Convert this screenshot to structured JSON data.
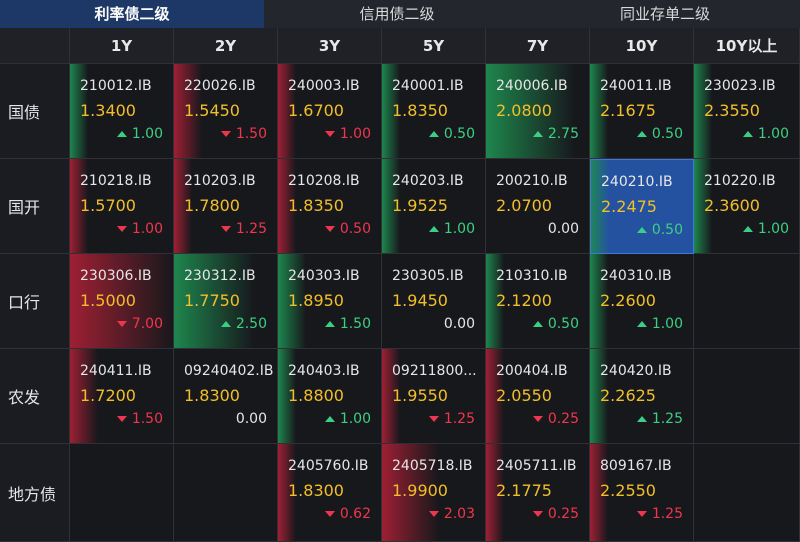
{
  "tabs": [
    "利率债二级",
    "信用债二级",
    "同业存单二级"
  ],
  "active_tab": 0,
  "columns": [
    "1Y",
    "2Y",
    "3Y",
    "5Y",
    "7Y",
    "10Y",
    "10Y以上"
  ],
  "selected": {
    "row": 1,
    "col": 5
  },
  "rows": [
    {
      "label": "国债",
      "cells": [
        {
          "code": "210012.IB",
          "yield": "1.3400",
          "change": "1.00",
          "dir": "up"
        },
        {
          "code": "220026.IB",
          "yield": "1.5450",
          "change": "1.50",
          "dir": "down"
        },
        {
          "code": "240003.IB",
          "yield": "1.6700",
          "change": "1.00",
          "dir": "down"
        },
        {
          "code": "240001.IB",
          "yield": "1.8350",
          "change": "0.50",
          "dir": "up"
        },
        {
          "code": "240006.IB",
          "yield": "2.0800",
          "change": "2.75",
          "dir": "up"
        },
        {
          "code": "240011.IB",
          "yield": "2.1675",
          "change": "0.50",
          "dir": "up"
        },
        {
          "code": "230023.IB",
          "yield": "2.3550",
          "change": "1.00",
          "dir": "up"
        }
      ]
    },
    {
      "label": "国开",
      "cells": [
        {
          "code": "210218.IB",
          "yield": "1.5700",
          "change": "1.00",
          "dir": "down"
        },
        {
          "code": "210203.IB",
          "yield": "1.7800",
          "change": "1.25",
          "dir": "down"
        },
        {
          "code": "210208.IB",
          "yield": "1.8350",
          "change": "0.50",
          "dir": "down"
        },
        {
          "code": "240203.IB",
          "yield": "1.9525",
          "change": "1.00",
          "dir": "up"
        },
        {
          "code": "200210.IB",
          "yield": "2.0700",
          "change": "0.00",
          "dir": "flat"
        },
        {
          "code": "240210.IB",
          "yield": "2.2475",
          "change": "0.50",
          "dir": "up"
        },
        {
          "code": "210220.IB",
          "yield": "2.3600",
          "change": "1.00",
          "dir": "up"
        }
      ]
    },
    {
      "label": "口行",
      "cells": [
        {
          "code": "230306.IB",
          "yield": "1.5000",
          "change": "7.00",
          "dir": "down"
        },
        {
          "code": "230312.IB",
          "yield": "1.7750",
          "change": "2.50",
          "dir": "up"
        },
        {
          "code": "240303.IB",
          "yield": "1.8950",
          "change": "1.50",
          "dir": "up"
        },
        {
          "code": "230305.IB",
          "yield": "1.9450",
          "change": "0.00",
          "dir": "flat"
        },
        {
          "code": "210310.IB",
          "yield": "2.1200",
          "change": "0.50",
          "dir": "up"
        },
        {
          "code": "240310.IB",
          "yield": "2.2600",
          "change": "1.00",
          "dir": "up"
        },
        null
      ]
    },
    {
      "label": "农发",
      "cells": [
        {
          "code": "240411.IB",
          "yield": "1.7200",
          "change": "1.50",
          "dir": "down"
        },
        {
          "code": "09240402.IB",
          "yield": "1.8300",
          "change": "0.00",
          "dir": "flat"
        },
        {
          "code": "240403.IB",
          "yield": "1.8800",
          "change": "1.00",
          "dir": "up"
        },
        {
          "code": "09211800...",
          "yield": "1.9550",
          "change": "1.25",
          "dir": "down"
        },
        {
          "code": "200404.IB",
          "yield": "2.0550",
          "change": "0.25",
          "dir": "down"
        },
        {
          "code": "240420.IB",
          "yield": "2.2625",
          "change": "1.25",
          "dir": "up"
        },
        null
      ]
    },
    {
      "label": "地方债",
      "cells": [
        null,
        null,
        {
          "code": "2405760.IB",
          "yield": "1.8300",
          "change": "0.62",
          "dir": "down"
        },
        {
          "code": "2405718.IB",
          "yield": "1.9900",
          "change": "2.03",
          "dir": "down"
        },
        {
          "code": "2405711.IB",
          "yield": "2.1775",
          "change": "0.25",
          "dir": "down"
        },
        {
          "code": "809167.IB",
          "yield": "2.2550",
          "change": "1.25",
          "dir": "down"
        },
        null
      ]
    }
  ]
}
